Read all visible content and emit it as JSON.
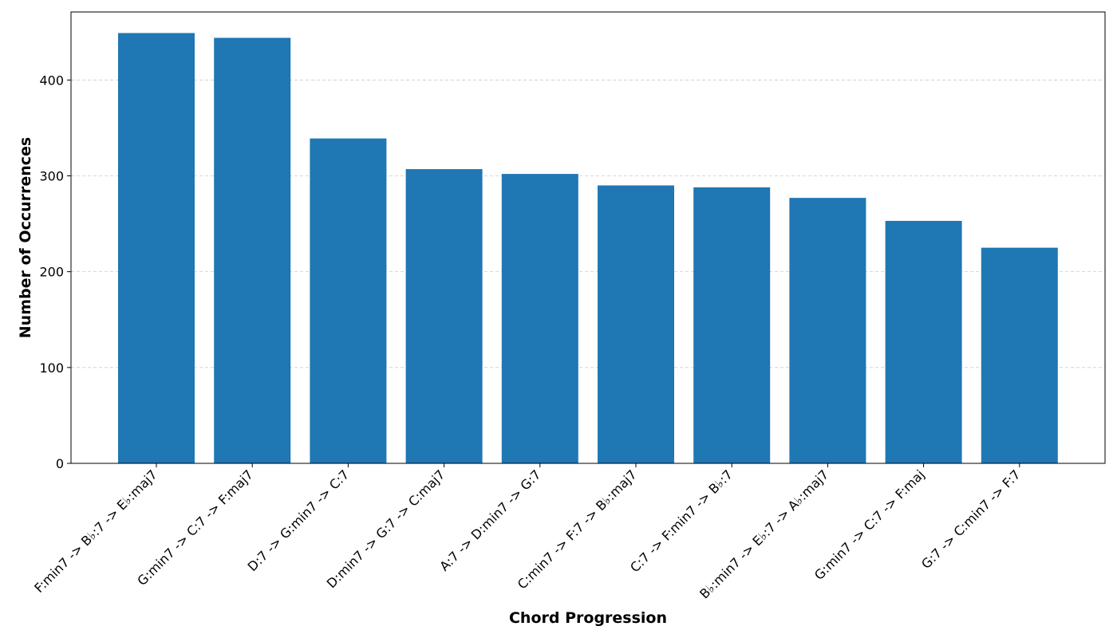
{
  "chart_data": {
    "type": "bar",
    "title": "",
    "xlabel": "Chord Progression",
    "ylabel": "Number of Occurrences",
    "categories": [
      "F:min7 -> B♭:7 -> E♭:maj7",
      "G:min7 -> C:7 -> F:maj7",
      "D:7 -> G:min7 -> C:7",
      "D:min7 -> G:7 -> C:maj7",
      "A:7 -> D:min7 -> G:7",
      "C:min7 -> F:7 -> B♭:maj7",
      "C:7 -> F:min7 -> B♭:7",
      "B♭:min7 -> E♭:7 -> A♭:maj7",
      "G:min7 -> C:7 -> F:maj",
      "G:7 -> C:min7 -> F:7"
    ],
    "values": [
      449,
      444,
      339,
      307,
      302,
      290,
      288,
      277,
      253,
      225
    ],
    "ylim": [
      0,
      471
    ],
    "yticks": [
      0,
      100,
      200,
      300,
      400
    ],
    "grid": "y-dashed",
    "bar_color": "#1f77b4",
    "grid_color": "#cccccc"
  }
}
